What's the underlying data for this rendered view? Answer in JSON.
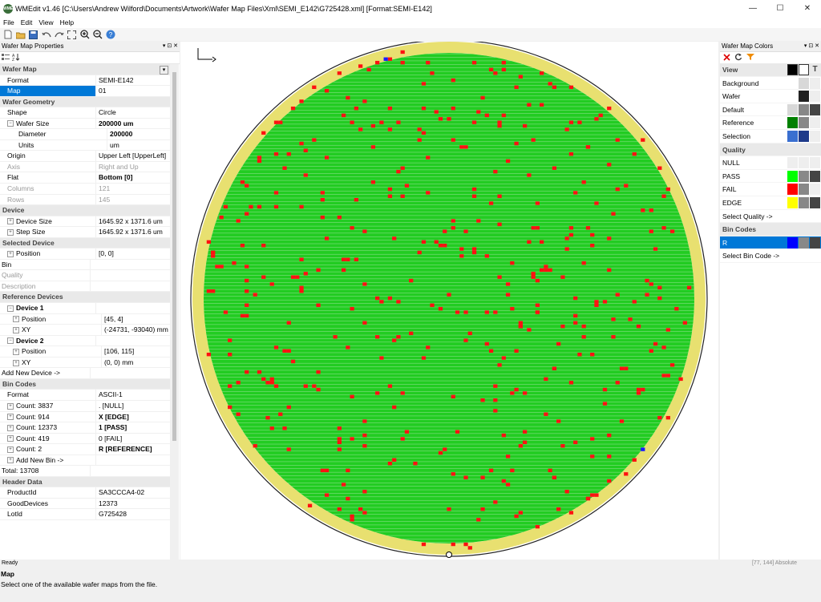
{
  "window": {
    "title": "WMEdit v1.46 [C:\\Users\\Andrew Wilford\\Documents\\Artwork\\Wafer Map Files\\Xml\\SEMI_E142\\G725428.xml] [Format:SEMI-E142]",
    "icon_label": "WME",
    "minimize_glyph": "—",
    "maximize_glyph": "☐",
    "close_glyph": "✕"
  },
  "menu": [
    "File",
    "Edit",
    "View",
    "Help"
  ],
  "toolbar": {
    "icons": [
      "new-file-icon",
      "open-folder-icon",
      "save-icon",
      "undo-icon",
      "redo-icon",
      "fit-to-window-icon",
      "zoom-in-icon",
      "zoom-out-icon",
      "help-icon"
    ]
  },
  "properties": {
    "title": "Wafer Map Properties",
    "header_buttons": "▾ ⊡ ✕",
    "rows": [
      {
        "type": "cat",
        "label": "Wafer Map"
      },
      {
        "label": "Format",
        "value": "SEMI-E142",
        "indent": 1
      },
      {
        "label": "Map",
        "value": "01",
        "indent": 1,
        "selected": true
      },
      {
        "type": "cat",
        "label": "Wafer Geometry"
      },
      {
        "label": "Shape",
        "value": "Circle",
        "indent": 1
      },
      {
        "label": "Wafer Size",
        "value": "200000 um",
        "indent": 1,
        "exp": "−",
        "bold": true
      },
      {
        "label": "Diameter",
        "value": "200000",
        "indent": 3,
        "bold": true
      },
      {
        "label": "Units",
        "value": "um",
        "indent": 3
      },
      {
        "label": "Origin",
        "value": "Upper Left [UpperLeft]",
        "indent": 1
      },
      {
        "label": "Axis",
        "value": "Right and Up",
        "indent": 1,
        "gray": true
      },
      {
        "label": "Flat",
        "value": "Bottom [0]",
        "indent": 1,
        "bold": true
      },
      {
        "label": "Columns",
        "value": "121",
        "indent": 1,
        "gray": true
      },
      {
        "label": "Rows",
        "value": "145",
        "indent": 1,
        "gray": true
      },
      {
        "type": "cat",
        "label": "Device"
      },
      {
        "label": "Device Size",
        "value": "1645.92 x 1371.6 um",
        "indent": 1,
        "exp": "+"
      },
      {
        "label": "Step Size",
        "value": "1645.92 x 1371.6 um",
        "indent": 1,
        "exp": "+"
      },
      {
        "type": "cat",
        "label": "Selected Device"
      },
      {
        "label": "Position",
        "value": "[0, 0]",
        "indent": 1,
        "exp": "+"
      },
      {
        "label": "Bin",
        "value": "",
        "indent": 0
      },
      {
        "label": "Quality",
        "value": "",
        "indent": 0,
        "gray": true
      },
      {
        "label": "Description",
        "value": "",
        "indent": 0,
        "gray": true
      },
      {
        "type": "cat",
        "label": "Reference Devices"
      },
      {
        "label": "Device 1",
        "value": "",
        "indent": 1,
        "exp": "−",
        "catsub": true
      },
      {
        "label": "Position",
        "value": "[45, 4]",
        "indent": 2,
        "exp": "+"
      },
      {
        "label": "XY",
        "value": "(-24731, -93040) mm",
        "indent": 2,
        "exp": "+"
      },
      {
        "label": "Device 2",
        "value": "",
        "indent": 1,
        "exp": "−",
        "catsub": true
      },
      {
        "label": "Position",
        "value": "[106, 115]",
        "indent": 2,
        "exp": "+"
      },
      {
        "label": "XY",
        "value": "(0, 0) mm",
        "indent": 2,
        "exp": "+"
      },
      {
        "label": "Add New Device ->",
        "value": "",
        "indent": 0
      },
      {
        "type": "cat",
        "label": "Bin Codes"
      },
      {
        "label": "Format",
        "value": "ASCII-1",
        "indent": 1
      },
      {
        "label": "Count: 3837",
        "value": ". [NULL]",
        "indent": 1,
        "exp": "+"
      },
      {
        "label": "Count: 914",
        "value": "X [EDGE]",
        "indent": 1,
        "exp": "+",
        "bold": true
      },
      {
        "label": "Count: 12373",
        "value": "1 [PASS]",
        "indent": 1,
        "exp": "+",
        "bold": true
      },
      {
        "label": "Count: 419",
        "value": "0 [FAIL]",
        "indent": 1,
        "exp": "+"
      },
      {
        "label": "Count: 2",
        "value": "R [REFERENCE]",
        "indent": 1,
        "exp": "+",
        "bold": true
      },
      {
        "label": "Add New Bin ->",
        "value": "",
        "indent": 1,
        "exp": "+"
      },
      {
        "label": "Total: 13708",
        "value": "",
        "indent": 0
      },
      {
        "type": "cat",
        "label": "Header Data"
      },
      {
        "label": "ProductId",
        "value": "SA3CCCA4-02",
        "indent": 1
      },
      {
        "label": "GoodDevices",
        "value": "12373",
        "indent": 1
      },
      {
        "label": "LotId",
        "value": "G725428",
        "indent": 1
      }
    ],
    "help": {
      "title": "Map",
      "description": "Select one of the available wafer maps from the file."
    }
  },
  "colors_pane": {
    "title": "Wafer Map Colors",
    "header_buttons": "▾ ⊡ ✕",
    "toolbar_icons": [
      "delete-icon",
      "refresh-icon",
      "filter-icon"
    ],
    "rows": [
      {
        "type": "cat",
        "label": "View",
        "swatches": [
          "#000000",
          "#ffffff",
          "T"
        ]
      },
      {
        "label": "Background",
        "swatches": [
          "#d8d8d8",
          "#eeeeee"
        ]
      },
      {
        "label": "Wafer",
        "swatches": [
          "#222222",
          "#eeeeee"
        ]
      },
      {
        "label": "Default",
        "swatches": [
          "#d8d8d8",
          "#888888",
          "#444444"
        ]
      },
      {
        "label": "Reference",
        "swatches": [
          "#008000",
          "#888888",
          "#eeeeee"
        ]
      },
      {
        "label": "Selection",
        "swatches": [
          "#3a6fd0",
          "#1e3a8a",
          "#eeeeee"
        ]
      },
      {
        "type": "cat",
        "label": "Quality"
      },
      {
        "label": "NULL",
        "swatches": [
          "#eeeeee",
          "#eeeeee",
          "#eeeeee"
        ]
      },
      {
        "label": "PASS",
        "swatches": [
          "#00ff00",
          "#888888",
          "#444444"
        ]
      },
      {
        "label": "FAIL",
        "swatches": [
          "#ff0000",
          "#888888",
          "#eeeeee"
        ]
      },
      {
        "label": "EDGE",
        "swatches": [
          "#ffff00",
          "#888888",
          "#444444"
        ]
      },
      {
        "label": "Select Quality ->",
        "swatches": []
      },
      {
        "type": "cat",
        "label": "Bin Codes"
      },
      {
        "label": "R",
        "selected": true,
        "swatches": [
          "#0000ff",
          "#888888",
          "#444444"
        ]
      },
      {
        "label": "Select Bin Code ->",
        "swatches": []
      }
    ]
  },
  "wafer": {
    "columns": 121,
    "rows": 145,
    "colors": {
      "pass": "#22cc22",
      "edge": "#e8e070",
      "fail": "#ff1111",
      "reference": "#1a1aff",
      "grid": "#b8e8b8",
      "outline": "#222222",
      "background": "#ffffff"
    }
  },
  "status": {
    "left": "Ready",
    "right": "[77, 144] Absolute"
  }
}
